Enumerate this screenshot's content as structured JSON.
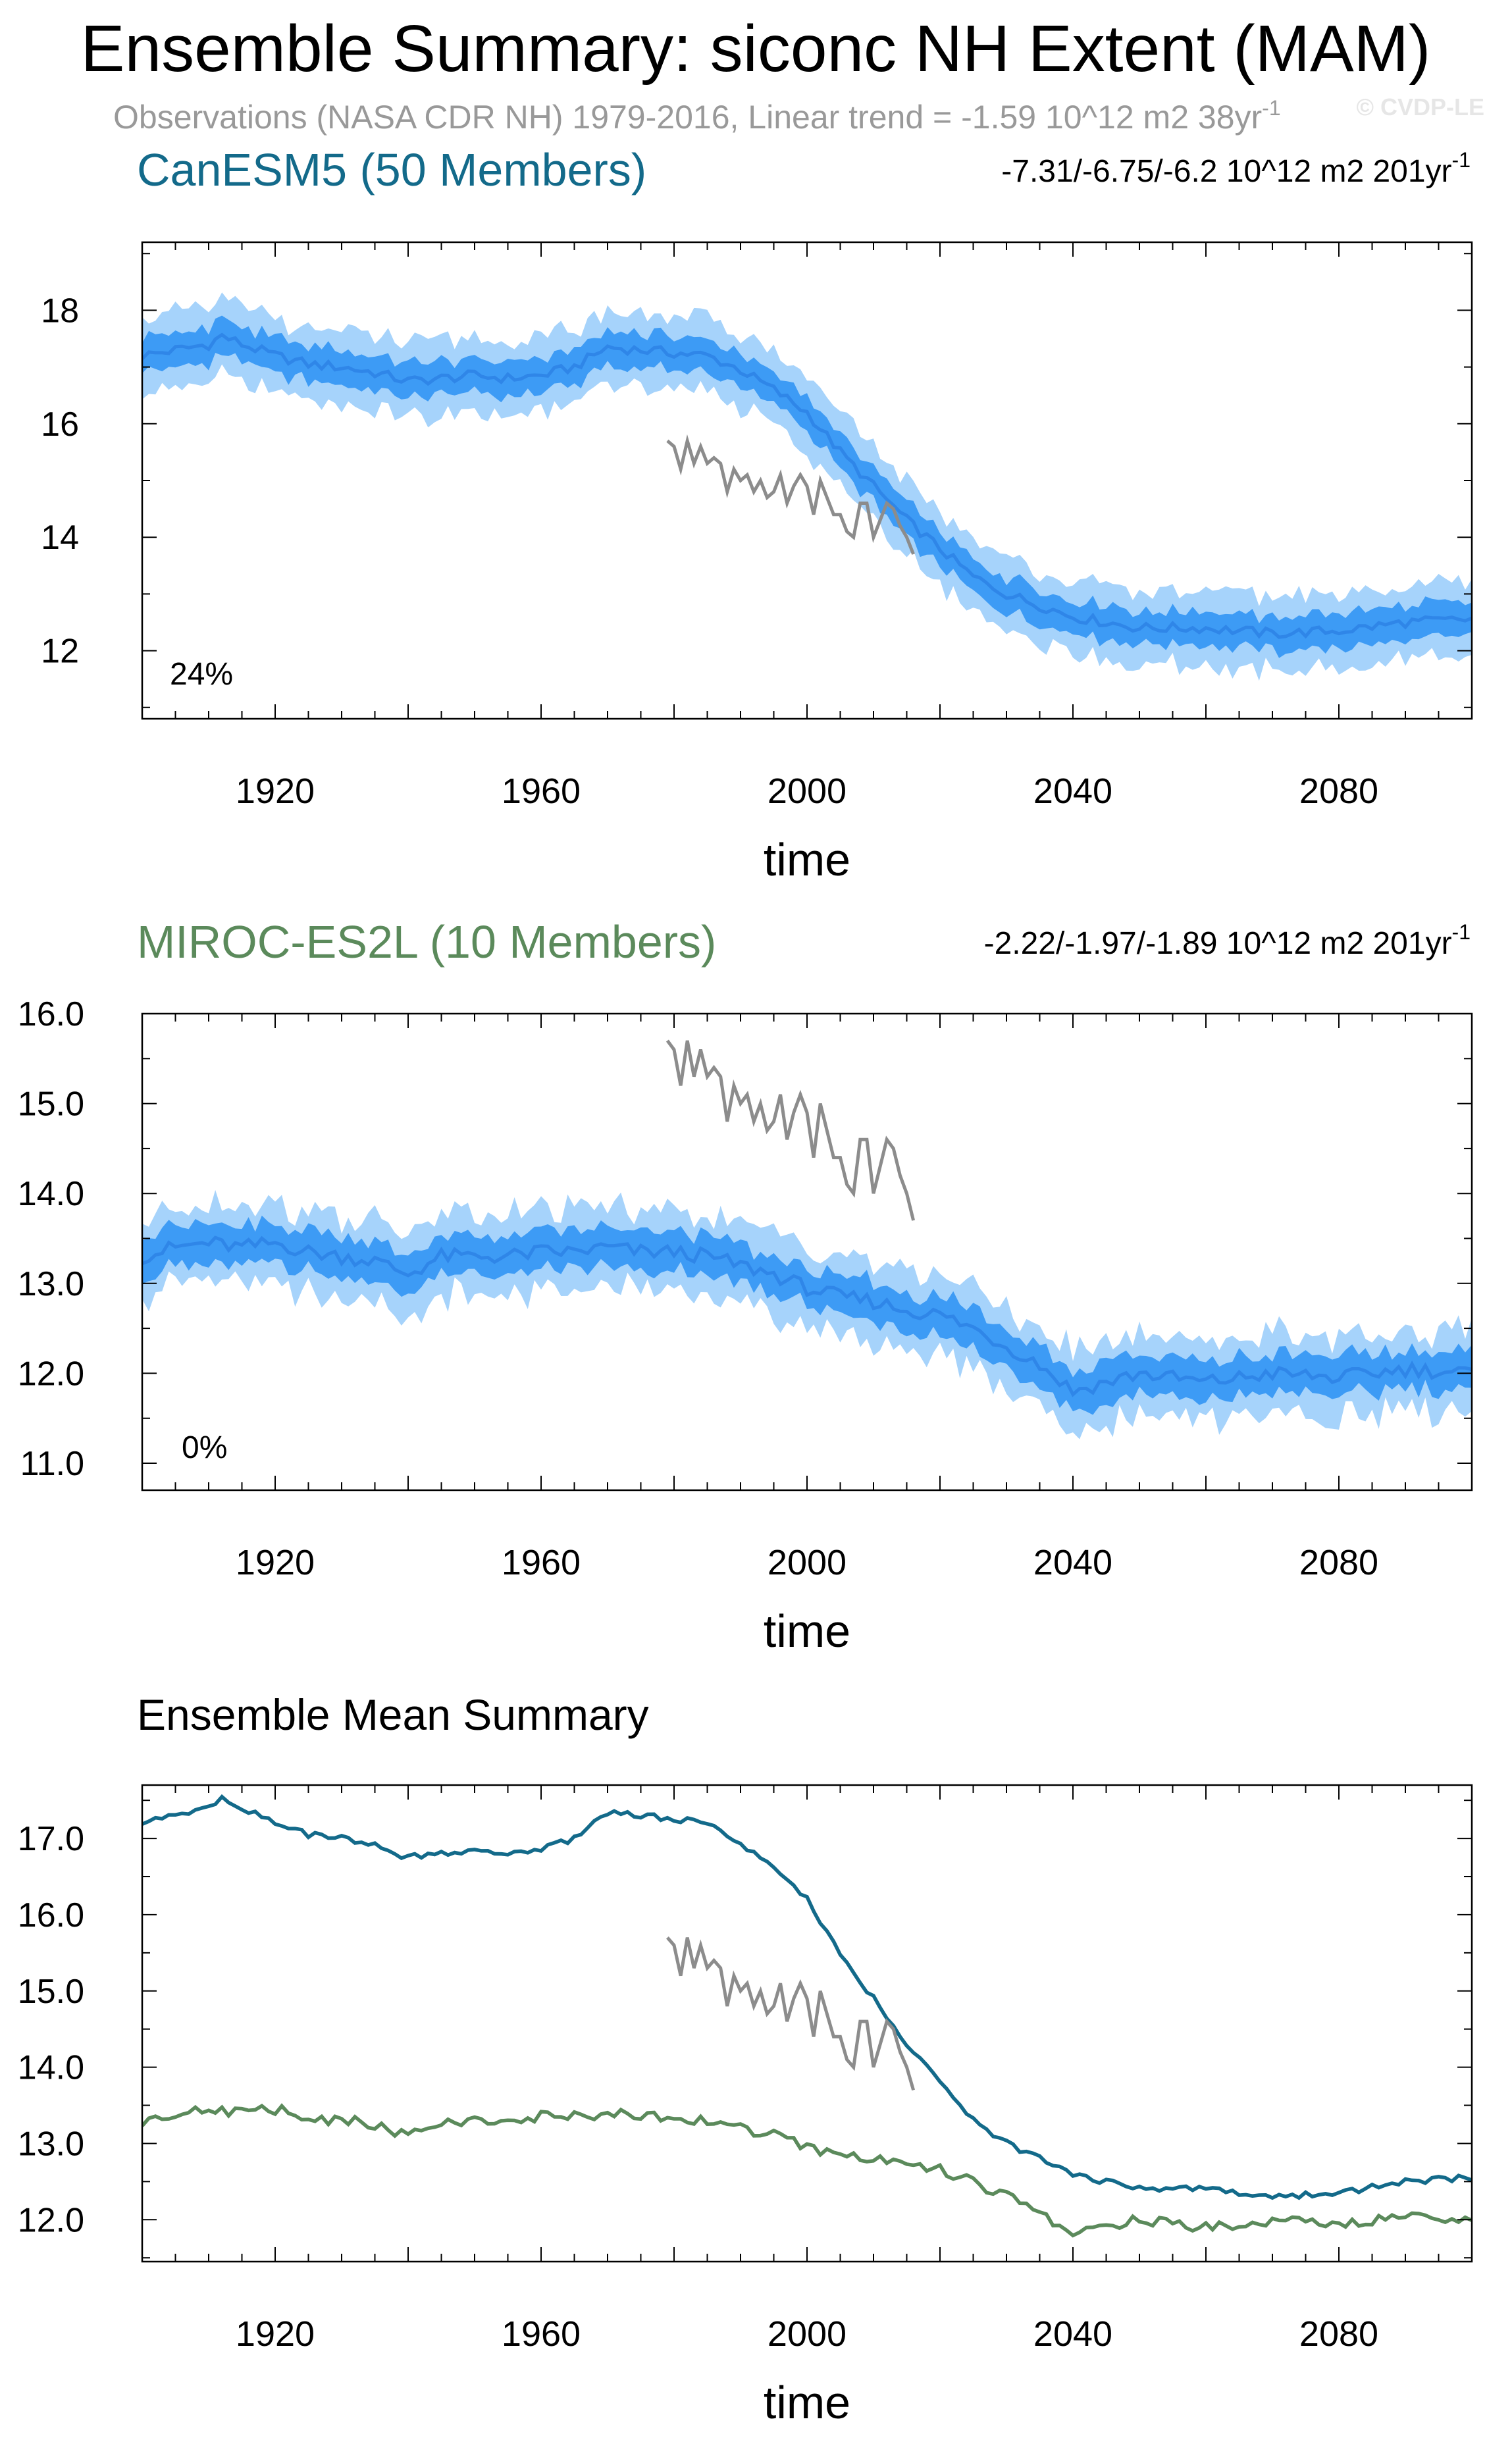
{
  "figure": {
    "title": "Ensemble Summary: siconc NH Extent (MAM)",
    "obs_line": "Observations (NASA CDR NH) 1979-2016, Linear trend = -1.59 10^12 m2 38yr",
    "obs_line_sup": "-1",
    "watermark": "© CVDP-LE"
  },
  "colors": {
    "canesm": "#136a8a",
    "miroc": "#5b8a5b",
    "band_outer": "#a6d3fb",
    "band_inner": "#3d9bf5",
    "mean_line": "#2f86e8",
    "obs": "#8c8c8c"
  },
  "chart_data": [
    {
      "type": "area",
      "id": "canesm",
      "title": "CanESM5 (50 Members)",
      "trend_text": "-7.31/-6.75/-6.2 10^12 m2 201yr",
      "trend_sup": "-1",
      "percent_label": "24%",
      "xlabel": "time",
      "ylabel": "",
      "xlim": [
        1900,
        2100
      ],
      "ylim": [
        10.8,
        19.2
      ],
      "xticks": [
        1920,
        1960,
        2000,
        2040,
        2080
      ],
      "yticks": [
        12,
        14,
        16,
        18
      ],
      "ytick_labels": [
        "12",
        "14",
        "16",
        "18"
      ],
      "series_anchors": {
        "mean": [
          [
            1900,
            17.2
          ],
          [
            1905,
            17.3
          ],
          [
            1910,
            17.4
          ],
          [
            1912,
            17.55
          ],
          [
            1915,
            17.4
          ],
          [
            1920,
            17.2
          ],
          [
            1925,
            17.05
          ],
          [
            1930,
            17.0
          ],
          [
            1935,
            16.9
          ],
          [
            1940,
            16.75
          ],
          [
            1945,
            16.8
          ],
          [
            1950,
            16.85
          ],
          [
            1955,
            16.8
          ],
          [
            1960,
            16.85
          ],
          [
            1965,
            17.0
          ],
          [
            1970,
            17.35
          ],
          [
            1975,
            17.3
          ],
          [
            1980,
            17.25
          ],
          [
            1985,
            17.2
          ],
          [
            1990,
            16.95
          ],
          [
            1995,
            16.6
          ],
          [
            2000,
            16.2
          ],
          [
            2005,
            15.5
          ],
          [
            2010,
            14.9
          ],
          [
            2015,
            14.3
          ],
          [
            2020,
            13.8
          ],
          [
            2025,
            13.3
          ],
          [
            2030,
            13.0
          ],
          [
            2035,
            12.8
          ],
          [
            2040,
            12.6
          ],
          [
            2045,
            12.5
          ],
          [
            2050,
            12.4
          ],
          [
            2060,
            12.4
          ],
          [
            2070,
            12.3
          ],
          [
            2080,
            12.35
          ],
          [
            2090,
            12.5
          ],
          [
            2100,
            12.55
          ]
        ],
        "inner_halfwidth": 0.3,
        "outer_halfwidth": 0.65,
        "noise": 0.15
      },
      "obs": {
        "label": "Observations (NASA CDR NH)",
        "years": [
          1979,
          1980,
          1981,
          1982,
          1983,
          1984,
          1985,
          1986,
          1987,
          1988,
          1989,
          1990,
          1991,
          1992,
          1993,
          1994,
          1995,
          1996,
          1997,
          1998,
          1999,
          2000,
          2001,
          2002,
          2003,
          2004,
          2005,
          2006,
          2007,
          2008,
          2009,
          2010,
          2011,
          2012,
          2013,
          2014,
          2015,
          2016
        ],
        "values": [
          15.7,
          15.6,
          15.2,
          15.7,
          15.3,
          15.6,
          15.3,
          15.4,
          15.3,
          14.8,
          15.2,
          15.0,
          15.1,
          14.8,
          15.0,
          14.7,
          14.8,
          15.1,
          14.6,
          14.9,
          15.1,
          14.9,
          14.4,
          15.0,
          14.7,
          14.4,
          14.4,
          14.1,
          14.0,
          14.6,
          14.6,
          14.0,
          14.3,
          14.6,
          14.5,
          14.2,
          14.0,
          13.7
        ]
      }
    },
    {
      "type": "area",
      "id": "miroc",
      "title": "MIROC-ES2L (10 Members)",
      "trend_text": "-2.22/-1.97/-1.89 10^12 m2 201yr",
      "trend_sup": "-1",
      "percent_label": "0%",
      "xlabel": "time",
      "ylabel": "",
      "xlim": [
        1900,
        2100
      ],
      "ylim": [
        10.7,
        16.0
      ],
      "xticks": [
        1920,
        1960,
        2000,
        2040,
        2080
      ],
      "yticks": [
        11,
        12,
        13,
        14,
        15,
        16
      ],
      "ytick_labels": [
        "11.0",
        "12.0",
        "13.0",
        "14.0",
        "15.0",
        "16.0"
      ],
      "series_anchors": {
        "mean": [
          [
            1900,
            13.3
          ],
          [
            1905,
            13.4
          ],
          [
            1910,
            13.45
          ],
          [
            1915,
            13.4
          ],
          [
            1920,
            13.45
          ],
          [
            1925,
            13.35
          ],
          [
            1930,
            13.3
          ],
          [
            1935,
            13.25
          ],
          [
            1940,
            13.1
          ],
          [
            1945,
            13.3
          ],
          [
            1950,
            13.3
          ],
          [
            1955,
            13.3
          ],
          [
            1960,
            13.35
          ],
          [
            1965,
            13.35
          ],
          [
            1970,
            13.4
          ],
          [
            1975,
            13.35
          ],
          [
            1980,
            13.35
          ],
          [
            1985,
            13.3
          ],
          [
            1990,
            13.2
          ],
          [
            1995,
            13.1
          ],
          [
            2000,
            12.95
          ],
          [
            2005,
            12.85
          ],
          [
            2010,
            12.8
          ],
          [
            2015,
            12.7
          ],
          [
            2020,
            12.65
          ],
          [
            2025,
            12.5
          ],
          [
            2030,
            12.3
          ],
          [
            2035,
            12.1
          ],
          [
            2040,
            11.8
          ],
          [
            2045,
            11.9
          ],
          [
            2050,
            12.0
          ],
          [
            2055,
            11.95
          ],
          [
            2060,
            11.9
          ],
          [
            2070,
            12.0
          ],
          [
            2080,
            11.95
          ],
          [
            2090,
            12.05
          ],
          [
            2100,
            12.0
          ]
        ],
        "inner_halfwidth": 0.22,
        "outer_halfwidth": 0.45,
        "noise": 0.14
      },
      "obs": {
        "label": "Observations (NASA CDR NH)",
        "years": [
          1979,
          1980,
          1981,
          1982,
          1983,
          1984,
          1985,
          1986,
          1987,
          1988,
          1989,
          1990,
          1991,
          1992,
          1993,
          1994,
          1995,
          1996,
          1997,
          1998,
          1999,
          2000,
          2001,
          2002,
          2003,
          2004,
          2005,
          2006,
          2007,
          2008,
          2009,
          2010,
          2011,
          2012,
          2013,
          2014,
          2015,
          2016
        ],
        "values": [
          15.7,
          15.6,
          15.2,
          15.7,
          15.3,
          15.6,
          15.3,
          15.4,
          15.3,
          14.8,
          15.2,
          15.0,
          15.1,
          14.8,
          15.0,
          14.7,
          14.8,
          15.1,
          14.6,
          14.9,
          15.1,
          14.9,
          14.4,
          15.0,
          14.7,
          14.4,
          14.4,
          14.1,
          14.0,
          14.6,
          14.6,
          14.0,
          14.3,
          14.6,
          14.5,
          14.2,
          14.0,
          13.7
        ]
      }
    },
    {
      "type": "line",
      "id": "summary",
      "title": "Ensemble Mean Summary",
      "xlabel": "time",
      "ylabel": "",
      "xlim": [
        1900,
        2100
      ],
      "ylim": [
        11.45,
        17.7
      ],
      "xticks": [
        1920,
        1960,
        2000,
        2040,
        2080
      ],
      "yticks": [
        12,
        13,
        14,
        15,
        16,
        17
      ],
      "ytick_labels": [
        "12.0",
        "13.0",
        "14.0",
        "15.0",
        "16.0",
        "17.0"
      ],
      "series": [
        {
          "name": "CanESM5",
          "color_key": "canesm",
          "anchors": [
            [
              1900,
              17.2
            ],
            [
              1905,
              17.3
            ],
            [
              1910,
              17.4
            ],
            [
              1912,
              17.55
            ],
            [
              1915,
              17.4
            ],
            [
              1920,
              17.2
            ],
            [
              1925,
              17.05
            ],
            [
              1930,
              17.0
            ],
            [
              1935,
              16.9
            ],
            [
              1940,
              16.75
            ],
            [
              1945,
              16.8
            ],
            [
              1950,
              16.85
            ],
            [
              1955,
              16.8
            ],
            [
              1960,
              16.85
            ],
            [
              1965,
              17.0
            ],
            [
              1970,
              17.35
            ],
            [
              1975,
              17.3
            ],
            [
              1980,
              17.25
            ],
            [
              1985,
              17.2
            ],
            [
              1990,
              16.95
            ],
            [
              1995,
              16.6
            ],
            [
              2000,
              16.2
            ],
            [
              2005,
              15.5
            ],
            [
              2010,
              14.9
            ],
            [
              2015,
              14.3
            ],
            [
              2020,
              13.8
            ],
            [
              2025,
              13.3
            ],
            [
              2030,
              13.0
            ],
            [
              2035,
              12.8
            ],
            [
              2040,
              12.6
            ],
            [
              2045,
              12.5
            ],
            [
              2050,
              12.4
            ],
            [
              2060,
              12.4
            ],
            [
              2070,
              12.3
            ],
            [
              2080,
              12.35
            ],
            [
              2090,
              12.5
            ],
            [
              2100,
              12.55
            ]
          ],
          "noise": 0.04
        },
        {
          "name": "MIROC-ES2L",
          "color_key": "miroc",
          "anchors": [
            [
              1900,
              13.3
            ],
            [
              1905,
              13.4
            ],
            [
              1910,
              13.45
            ],
            [
              1915,
              13.4
            ],
            [
              1920,
              13.45
            ],
            [
              1925,
              13.35
            ],
            [
              1930,
              13.3
            ],
            [
              1935,
              13.25
            ],
            [
              1940,
              13.1
            ],
            [
              1945,
              13.3
            ],
            [
              1950,
              13.3
            ],
            [
              1955,
              13.3
            ],
            [
              1960,
              13.35
            ],
            [
              1965,
              13.35
            ],
            [
              1970,
              13.4
            ],
            [
              1975,
              13.35
            ],
            [
              1980,
              13.35
            ],
            [
              1985,
              13.3
            ],
            [
              1990,
              13.2
            ],
            [
              1995,
              13.1
            ],
            [
              2000,
              12.95
            ],
            [
              2005,
              12.85
            ],
            [
              2010,
              12.8
            ],
            [
              2015,
              12.7
            ],
            [
              2020,
              12.65
            ],
            [
              2025,
              12.5
            ],
            [
              2030,
              12.3
            ],
            [
              2035,
              12.1
            ],
            [
              2040,
              11.8
            ],
            [
              2045,
              11.9
            ],
            [
              2050,
              12.0
            ],
            [
              2055,
              11.95
            ],
            [
              2060,
              11.9
            ],
            [
              2070,
              12.0
            ],
            [
              2080,
              11.95
            ],
            [
              2090,
              12.05
            ],
            [
              2100,
              12.0
            ]
          ],
          "noise": 0.07
        }
      ],
      "obs": {
        "label": "Observations (NASA CDR NH)",
        "years": [
          1979,
          1980,
          1981,
          1982,
          1983,
          1984,
          1985,
          1986,
          1987,
          1988,
          1989,
          1990,
          1991,
          1992,
          1993,
          1994,
          1995,
          1996,
          1997,
          1998,
          1999,
          2000,
          2001,
          2002,
          2003,
          2004,
          2005,
          2006,
          2007,
          2008,
          2009,
          2010,
          2011,
          2012,
          2013,
          2014,
          2015,
          2016
        ],
        "values": [
          15.7,
          15.6,
          15.2,
          15.7,
          15.3,
          15.6,
          15.3,
          15.4,
          15.3,
          14.8,
          15.2,
          15.0,
          15.1,
          14.8,
          15.0,
          14.7,
          14.8,
          15.1,
          14.6,
          14.9,
          15.1,
          14.9,
          14.4,
          15.0,
          14.7,
          14.4,
          14.4,
          14.1,
          14.0,
          14.6,
          14.6,
          14.0,
          14.3,
          14.6,
          14.5,
          14.2,
          14.0,
          13.7
        ]
      }
    }
  ]
}
